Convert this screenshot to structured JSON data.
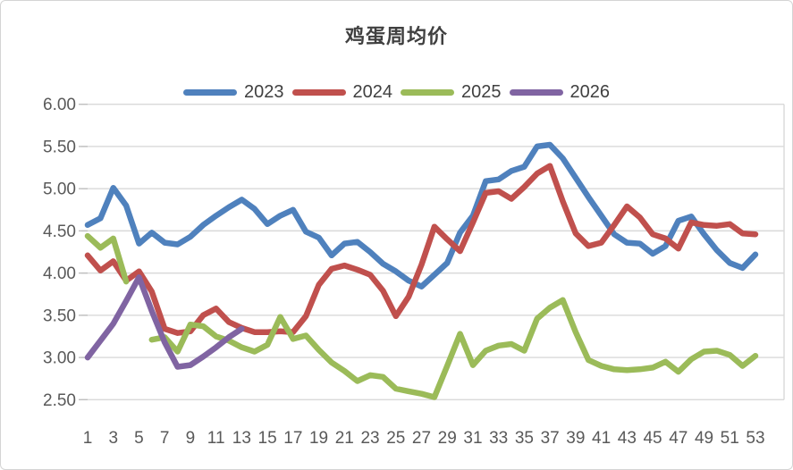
{
  "chart_data": {
    "type": "line",
    "title": "鸡蛋周均价",
    "legend_position": "top",
    "grid": true,
    "grid_color": "#d9d9d9",
    "tick_color": "#bfbfbf",
    "axis_label_color": "#595959",
    "ylim": [
      2.5,
      6.0
    ],
    "y_tick_step": 0.5,
    "y_tick_labels": [
      "6.00",
      "5.50",
      "5.00",
      "4.50",
      "4.00",
      "3.50",
      "3.00",
      "2.50"
    ],
    "x_label_weeks": [
      1,
      3,
      5,
      7,
      9,
      11,
      13,
      15,
      17,
      19,
      21,
      23,
      25,
      27,
      29,
      31,
      33,
      35,
      37,
      39,
      41,
      43,
      45,
      47,
      49,
      51,
      53
    ],
    "x_tick_labels": [
      "1",
      "3",
      "5",
      "7",
      "9",
      "11",
      "13",
      "15",
      "17",
      "19",
      "21",
      "23",
      "25",
      "27",
      "29",
      "31",
      "33",
      "35",
      "37",
      "39",
      "41",
      "43",
      "45",
      "47",
      "49",
      "51",
      "53"
    ],
    "x_weeks_total": 53,
    "series": [
      {
        "name": "2023",
        "color": "#4F81BD",
        "values": [
          4.57,
          4.65,
          5.01,
          4.8,
          4.35,
          4.48,
          4.36,
          4.34,
          4.43,
          4.57,
          4.68,
          4.78,
          4.87,
          4.76,
          4.58,
          4.68,
          4.75,
          4.49,
          4.42,
          4.21,
          4.35,
          4.37,
          4.25,
          4.11,
          4.02,
          3.91,
          3.84,
          3.98,
          4.12,
          4.48,
          4.68,
          5.09,
          5.11,
          5.21,
          5.26,
          5.5,
          5.52,
          5.36,
          5.13,
          4.9,
          4.68,
          4.46,
          4.36,
          4.35,
          4.23,
          4.32,
          4.62,
          4.67,
          4.46,
          4.27,
          4.12,
          4.06,
          4.22
        ]
      },
      {
        "name": "2024",
        "color": "#C0504D",
        "values": [
          4.21,
          4.03,
          4.14,
          3.91,
          4.02,
          3.78,
          3.34,
          3.29,
          3.31,
          3.5,
          3.58,
          3.42,
          3.35,
          3.3,
          3.3,
          3.31,
          3.3,
          3.49,
          3.86,
          4.05,
          4.09,
          4.04,
          3.98,
          3.79,
          3.49,
          3.72,
          4.1,
          4.55,
          4.4,
          4.26,
          4.6,
          4.95,
          4.97,
          4.88,
          5.02,
          5.18,
          5.27,
          4.85,
          4.47,
          4.32,
          4.36,
          4.57,
          4.79,
          4.66,
          4.46,
          4.41,
          4.29,
          4.6,
          4.57,
          4.56,
          4.58,
          4.47,
          4.46
        ]
      },
      {
        "name": "2025",
        "color": "#9BBB59",
        "values": [
          4.44,
          4.3,
          4.41,
          3.9,
          null,
          3.21,
          3.24,
          3.07,
          3.39,
          3.37,
          3.25,
          3.2,
          3.12,
          3.07,
          3.15,
          3.48,
          3.22,
          3.26,
          3.09,
          2.94,
          2.84,
          2.72,
          2.79,
          2.77,
          2.63,
          2.6,
          2.57,
          2.53,
          2.9,
          3.28,
          2.91,
          3.08,
          3.14,
          3.16,
          3.08,
          3.46,
          3.59,
          3.68,
          3.3,
          2.97,
          2.9,
          2.86,
          2.85,
          2.86,
          2.88,
          2.95,
          2.83,
          2.98,
          3.07,
          3.08,
          3.03,
          2.9,
          3.02
        ]
      },
      {
        "name": "2026",
        "color": "#8064A2",
        "values": [
          3.0,
          3.2,
          3.4,
          3.67,
          3.95,
          3.55,
          3.18,
          2.89,
          2.91,
          3.01,
          3.12,
          3.24,
          3.34
        ]
      }
    ]
  }
}
